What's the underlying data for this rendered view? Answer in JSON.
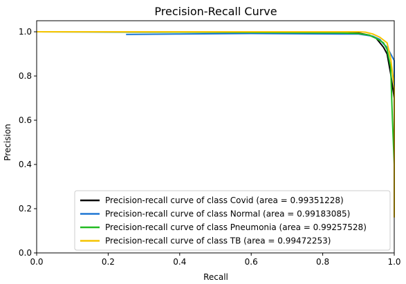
{
  "chart_data": {
    "type": "line",
    "title": "Precision-Recall Curve",
    "xlabel": "Recall",
    "ylabel": "Precision",
    "xlim": [
      0.0,
      1.0
    ],
    "ylim": [
      0.0,
      1.05
    ],
    "xticks": [
      "0.0",
      "0.2",
      "0.4",
      "0.6",
      "0.8",
      "1.0"
    ],
    "yticks": [
      "0.0",
      "0.2",
      "0.4",
      "0.6",
      "0.8",
      "1.0"
    ],
    "grid": false,
    "legend_position": "lower-right",
    "series": [
      {
        "name": "Precision-recall curve of class Covid (area = 0.99351228)",
        "color": "#000000",
        "points": [
          [
            0.0,
            1.0
          ],
          [
            0.5,
            0.998
          ],
          [
            0.85,
            0.996
          ],
          [
            0.9,
            0.994
          ],
          [
            0.93,
            0.985
          ],
          [
            0.95,
            0.97
          ],
          [
            0.96,
            0.95
          ],
          [
            0.97,
            0.93
          ],
          [
            0.98,
            0.9
          ],
          [
            0.99,
            0.81
          ],
          [
            1.0,
            0.7
          ],
          [
            1.0,
            0.42
          ]
        ]
      },
      {
        "name": "Precision-recall curve of class Normal (area = 0.99183085)",
        "color": "#1f77d4",
        "points": [
          [
            0.25,
            0.988
          ],
          [
            0.4,
            0.99
          ],
          [
            0.6,
            0.992
          ],
          [
            0.85,
            0.99
          ],
          [
            0.9,
            0.99
          ],
          [
            0.94,
            0.98
          ],
          [
            0.96,
            0.965
          ],
          [
            0.97,
            0.945
          ],
          [
            0.98,
            0.93
          ],
          [
            0.99,
            0.9
          ],
          [
            1.0,
            0.87
          ],
          [
            1.0,
            0.33
          ]
        ]
      },
      {
        "name": "Precision-recall curve of class Pneumonia (area = 0.99257528)",
        "color": "#22bb22",
        "points": [
          [
            0.0,
            1.0
          ],
          [
            0.5,
            0.998
          ],
          [
            0.85,
            0.995
          ],
          [
            0.9,
            0.992
          ],
          [
            0.93,
            0.985
          ],
          [
            0.95,
            0.97
          ],
          [
            0.97,
            0.95
          ],
          [
            0.98,
            0.92
          ],
          [
            0.99,
            0.84
          ],
          [
            0.995,
            0.6
          ],
          [
            1.0,
            0.4
          ]
        ]
      },
      {
        "name": "Precision-recall curve of class TB (area = 0.99472253)",
        "color": "#f5c400",
        "points": [
          [
            0.0,
            1.0
          ],
          [
            0.5,
            1.0
          ],
          [
            0.9,
            1.0
          ],
          [
            0.92,
            0.998
          ],
          [
            0.94,
            0.99
          ],
          [
            0.96,
            0.975
          ],
          [
            0.98,
            0.95
          ],
          [
            0.99,
            0.88
          ],
          [
            1.0,
            0.75
          ],
          [
            1.0,
            0.16
          ]
        ]
      }
    ]
  }
}
